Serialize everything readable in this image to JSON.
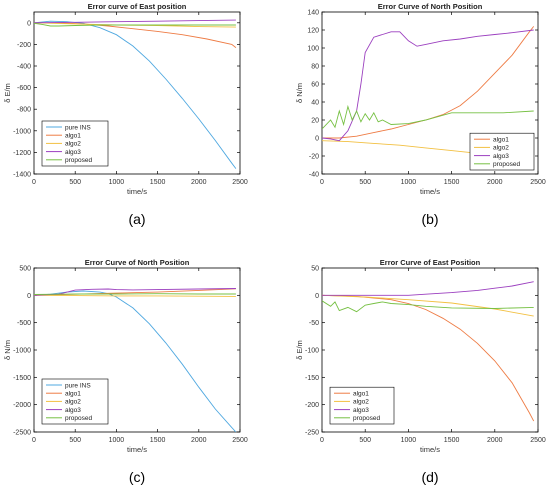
{
  "colors": {
    "pure_ins": "#4FA8E0",
    "algo1": "#EE7C45",
    "algo2": "#F2C042",
    "algo3": "#9B3FBF",
    "proposed": "#76C043",
    "axis": "#000000",
    "legend_border": "#000000"
  },
  "chart_data": [
    {
      "panel_label": "(a)",
      "type": "line",
      "title": "Error curve of East position",
      "xlabel": "time/s",
      "ylabel": "δ E/m",
      "xlim": [
        0,
        2500
      ],
      "ylim": [
        -1400,
        100
      ],
      "xticks": [
        0,
        500,
        1000,
        1500,
        2000,
        2500
      ],
      "yticks": [
        0,
        -200,
        -400,
        -600,
        -800,
        -1000,
        -1200,
        -1400
      ],
      "legend_placement": "bottom-left",
      "series": [
        {
          "name": "pure INS",
          "color_key": "pure_ins",
          "x": [
            0,
            200,
            400,
            600,
            800,
            1000,
            1200,
            1400,
            1600,
            1800,
            2000,
            2200,
            2400,
            2450
          ],
          "y": [
            0,
            15,
            10,
            -5,
            -45,
            -110,
            -215,
            -355,
            -520,
            -700,
            -890,
            -1090,
            -1300,
            -1350
          ]
        },
        {
          "name": "algo1",
          "color_key": "algo1",
          "x": [
            0,
            300,
            600,
            900,
            1200,
            1500,
            1800,
            2100,
            2400,
            2450
          ],
          "y": [
            0,
            0,
            -10,
            -30,
            -55,
            -80,
            -110,
            -150,
            -200,
            -230
          ]
        },
        {
          "name": "algo2",
          "color_key": "algo2",
          "x": [
            0,
            500,
            1000,
            1500,
            2000,
            2450
          ],
          "y": [
            0,
            -10,
            -20,
            -25,
            -35,
            -40
          ]
        },
        {
          "name": "algo3",
          "color_key": "algo3",
          "x": [
            0,
            500,
            1000,
            1500,
            2000,
            2450
          ],
          "y": [
            0,
            5,
            10,
            15,
            20,
            25
          ]
        },
        {
          "name": "proposed",
          "color_key": "proposed",
          "x": [
            0,
            100,
            200,
            300,
            500,
            800,
            1200,
            1600,
            2000,
            2450
          ],
          "y": [
            -5,
            -15,
            -30,
            -30,
            -25,
            -20,
            -20,
            -20,
            -20,
            -20
          ]
        }
      ]
    },
    {
      "panel_label": "(b)",
      "type": "line",
      "title": "Error Curve of North Position",
      "xlabel": "time/s",
      "ylabel": "δ N/m",
      "xlim": [
        0,
        2500
      ],
      "ylim": [
        -40,
        140
      ],
      "xticks": [
        0,
        500,
        1000,
        1500,
        2000,
        2500
      ],
      "yticks": [
        140,
        120,
        100,
        80,
        60,
        40,
        20,
        0,
        -20,
        -40
      ],
      "legend_placement": "bottom-right",
      "series": [
        {
          "name": "algo1",
          "color_key": "algo1",
          "x": [
            0,
            200,
            400,
            600,
            800,
            1000,
            1200,
            1400,
            1600,
            1800,
            2000,
            2200,
            2400,
            2450
          ],
          "y": [
            0,
            0,
            2,
            6,
            10,
            15,
            20,
            26,
            36,
            52,
            72,
            92,
            118,
            124
          ]
        },
        {
          "name": "algo2",
          "color_key": "algo2",
          "x": [
            0,
            300,
            600,
            900,
            1200,
            1500,
            1800,
            2100,
            2450
          ],
          "y": [
            -3,
            -4,
            -6,
            -8,
            -11,
            -14,
            -17,
            -19,
            -23
          ]
        },
        {
          "name": "algo3",
          "color_key": "algo3",
          "x": [
            0,
            100,
            200,
            300,
            400,
            450,
            500,
            600,
            700,
            800,
            900,
            1000,
            1100,
            1200,
            1400,
            1600,
            1800,
            2000,
            2200,
            2450
          ],
          "y": [
            0,
            -1,
            -3,
            8,
            30,
            60,
            95,
            112,
            115,
            118,
            118,
            108,
            102,
            104,
            108,
            110,
            113,
            115,
            117,
            120
          ]
        },
        {
          "name": "proposed",
          "color_key": "proposed",
          "x": [
            0,
            100,
            150,
            200,
            250,
            300,
            350,
            400,
            450,
            500,
            550,
            600,
            650,
            700,
            800,
            1000,
            1200,
            1500,
            1800,
            2100,
            2450
          ],
          "y": [
            10,
            20,
            12,
            30,
            15,
            35,
            20,
            30,
            18,
            27,
            20,
            28,
            18,
            20,
            15,
            16,
            20,
            28,
            28,
            28,
            30
          ]
        }
      ]
    },
    {
      "panel_label": "(c)",
      "type": "line",
      "title": "Error Curve of North Position",
      "xlabel": "time/s",
      "ylabel": "δ N/m",
      "xlim": [
        0,
        2500
      ],
      "ylim": [
        -2500,
        500
      ],
      "xticks": [
        0,
        500,
        1000,
        1500,
        2000,
        2500
      ],
      "yticks": [
        500,
        0,
        -500,
        -1000,
        -1500,
        -2000,
        -2500
      ],
      "legend_placement": "bottom-left",
      "series": [
        {
          "name": "pure INS",
          "color_key": "pure_ins",
          "x": [
            0,
            200,
            400,
            600,
            800,
            900,
            1000,
            1200,
            1400,
            1600,
            1800,
            2000,
            2200,
            2400,
            2450
          ],
          "y": [
            0,
            20,
            60,
            80,
            60,
            30,
            -30,
            -230,
            -520,
            -870,
            -1260,
            -1680,
            -2080,
            -2420,
            -2500
          ]
        },
        {
          "name": "algo1",
          "color_key": "algo1",
          "x": [
            0,
            500,
            1000,
            1500,
            2000,
            2450
          ],
          "y": [
            0,
            20,
            40,
            60,
            90,
            120
          ]
        },
        {
          "name": "algo2",
          "color_key": "algo2",
          "x": [
            0,
            500,
            1000,
            1500,
            2000,
            2450
          ],
          "y": [
            0,
            -5,
            -10,
            -10,
            -15,
            -20
          ]
        },
        {
          "name": "algo3",
          "color_key": "algo3",
          "x": [
            0,
            300,
            500,
            700,
            900,
            1000,
            1200,
            1500,
            2000,
            2450
          ],
          "y": [
            0,
            20,
            95,
            110,
            115,
            105,
            100,
            105,
            115,
            125
          ]
        },
        {
          "name": "proposed",
          "color_key": "proposed",
          "x": [
            0,
            300,
            600,
            1000,
            1500,
            2000,
            2450
          ],
          "y": [
            15,
            20,
            25,
            25,
            30,
            25,
            25
          ]
        }
      ]
    },
    {
      "panel_label": "(d)",
      "type": "line",
      "title": "Error Curve of East Position",
      "xlabel": "time/s",
      "ylabel": "δ E/m",
      "xlim": [
        0,
        2500
      ],
      "ylim": [
        -250,
        50
      ],
      "xticks": [
        0,
        500,
        1000,
        1500,
        2000,
        2500
      ],
      "yticks": [
        50,
        0,
        -50,
        -100,
        -150,
        -200,
        -250
      ],
      "legend_placement": "bottom-left",
      "series": [
        {
          "name": "algo1",
          "color_key": "algo1",
          "x": [
            0,
            400,
            800,
            1000,
            1200,
            1400,
            1600,
            1800,
            2000,
            2200,
            2400,
            2450
          ],
          "y": [
            0,
            -2,
            -8,
            -15,
            -26,
            -42,
            -62,
            -88,
            -120,
            -160,
            -215,
            -230
          ]
        },
        {
          "name": "algo2",
          "color_key": "algo2",
          "x": [
            0,
            500,
            1000,
            1500,
            2000,
            2450
          ],
          "y": [
            0,
            -3,
            -8,
            -14,
            -25,
            -38
          ]
        },
        {
          "name": "algo3",
          "color_key": "algo3",
          "x": [
            0,
            500,
            800,
            1000,
            1200,
            1500,
            1800,
            2000,
            2200,
            2450
          ],
          "y": [
            0,
            0,
            0,
            0,
            2,
            5,
            9,
            13,
            17,
            25
          ]
        },
        {
          "name": "proposed",
          "color_key": "proposed",
          "x": [
            0,
            100,
            150,
            200,
            300,
            400,
            500,
            600,
            700,
            800,
            1000,
            1200,
            1500,
            2000,
            2450
          ],
          "y": [
            -10,
            -20,
            -12,
            -28,
            -22,
            -30,
            -18,
            -15,
            -12,
            -15,
            -17,
            -20,
            -23,
            -24,
            -22
          ]
        }
      ]
    }
  ]
}
